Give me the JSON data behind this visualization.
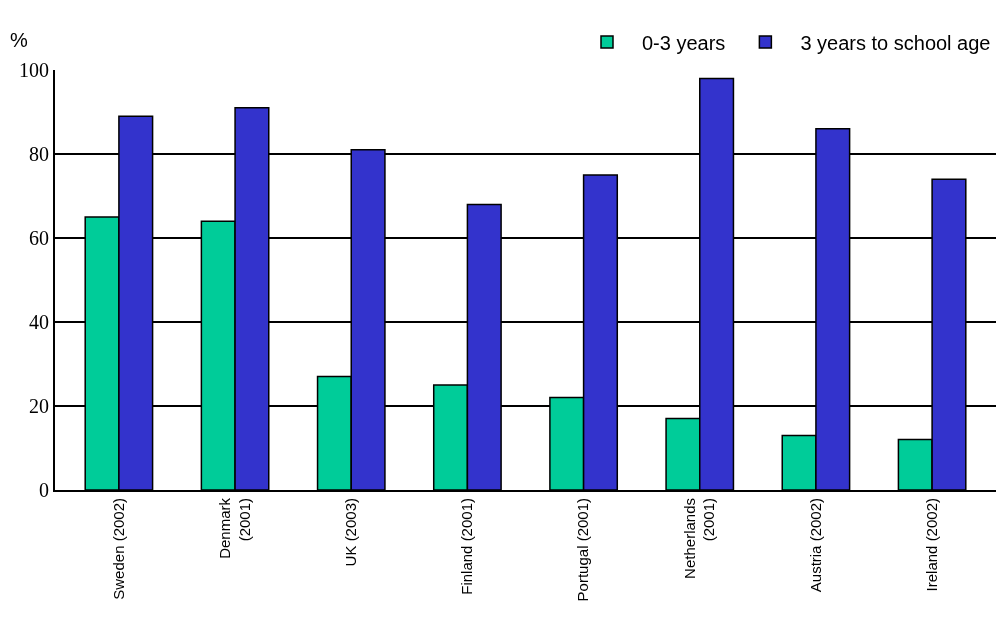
{
  "chart_data": {
    "type": "bar",
    "ylabel": "%",
    "categories": [
      "Sweden (2002)",
      "Denmark\n(2001)",
      "UK (2003)",
      "Finland (2001)",
      "Portugal (2001)",
      "Netherlands\n(2001)",
      "Austria (2002)",
      "Ireland (2002)"
    ],
    "series": [
      {
        "name": "0-3 years",
        "color": "#00cc99",
        "values": [
          65,
          64,
          27,
          25,
          22,
          17,
          13,
          12
        ]
      },
      {
        "name": "3 years to school age",
        "color": "#3333cc",
        "values": [
          89,
          91,
          81,
          68,
          75,
          98,
          86,
          74
        ]
      }
    ],
    "ylim": [
      0,
      100
    ],
    "yticks": [
      0,
      20,
      40,
      60,
      80,
      100
    ],
    "grid": "y",
    "legend": "top right"
  }
}
